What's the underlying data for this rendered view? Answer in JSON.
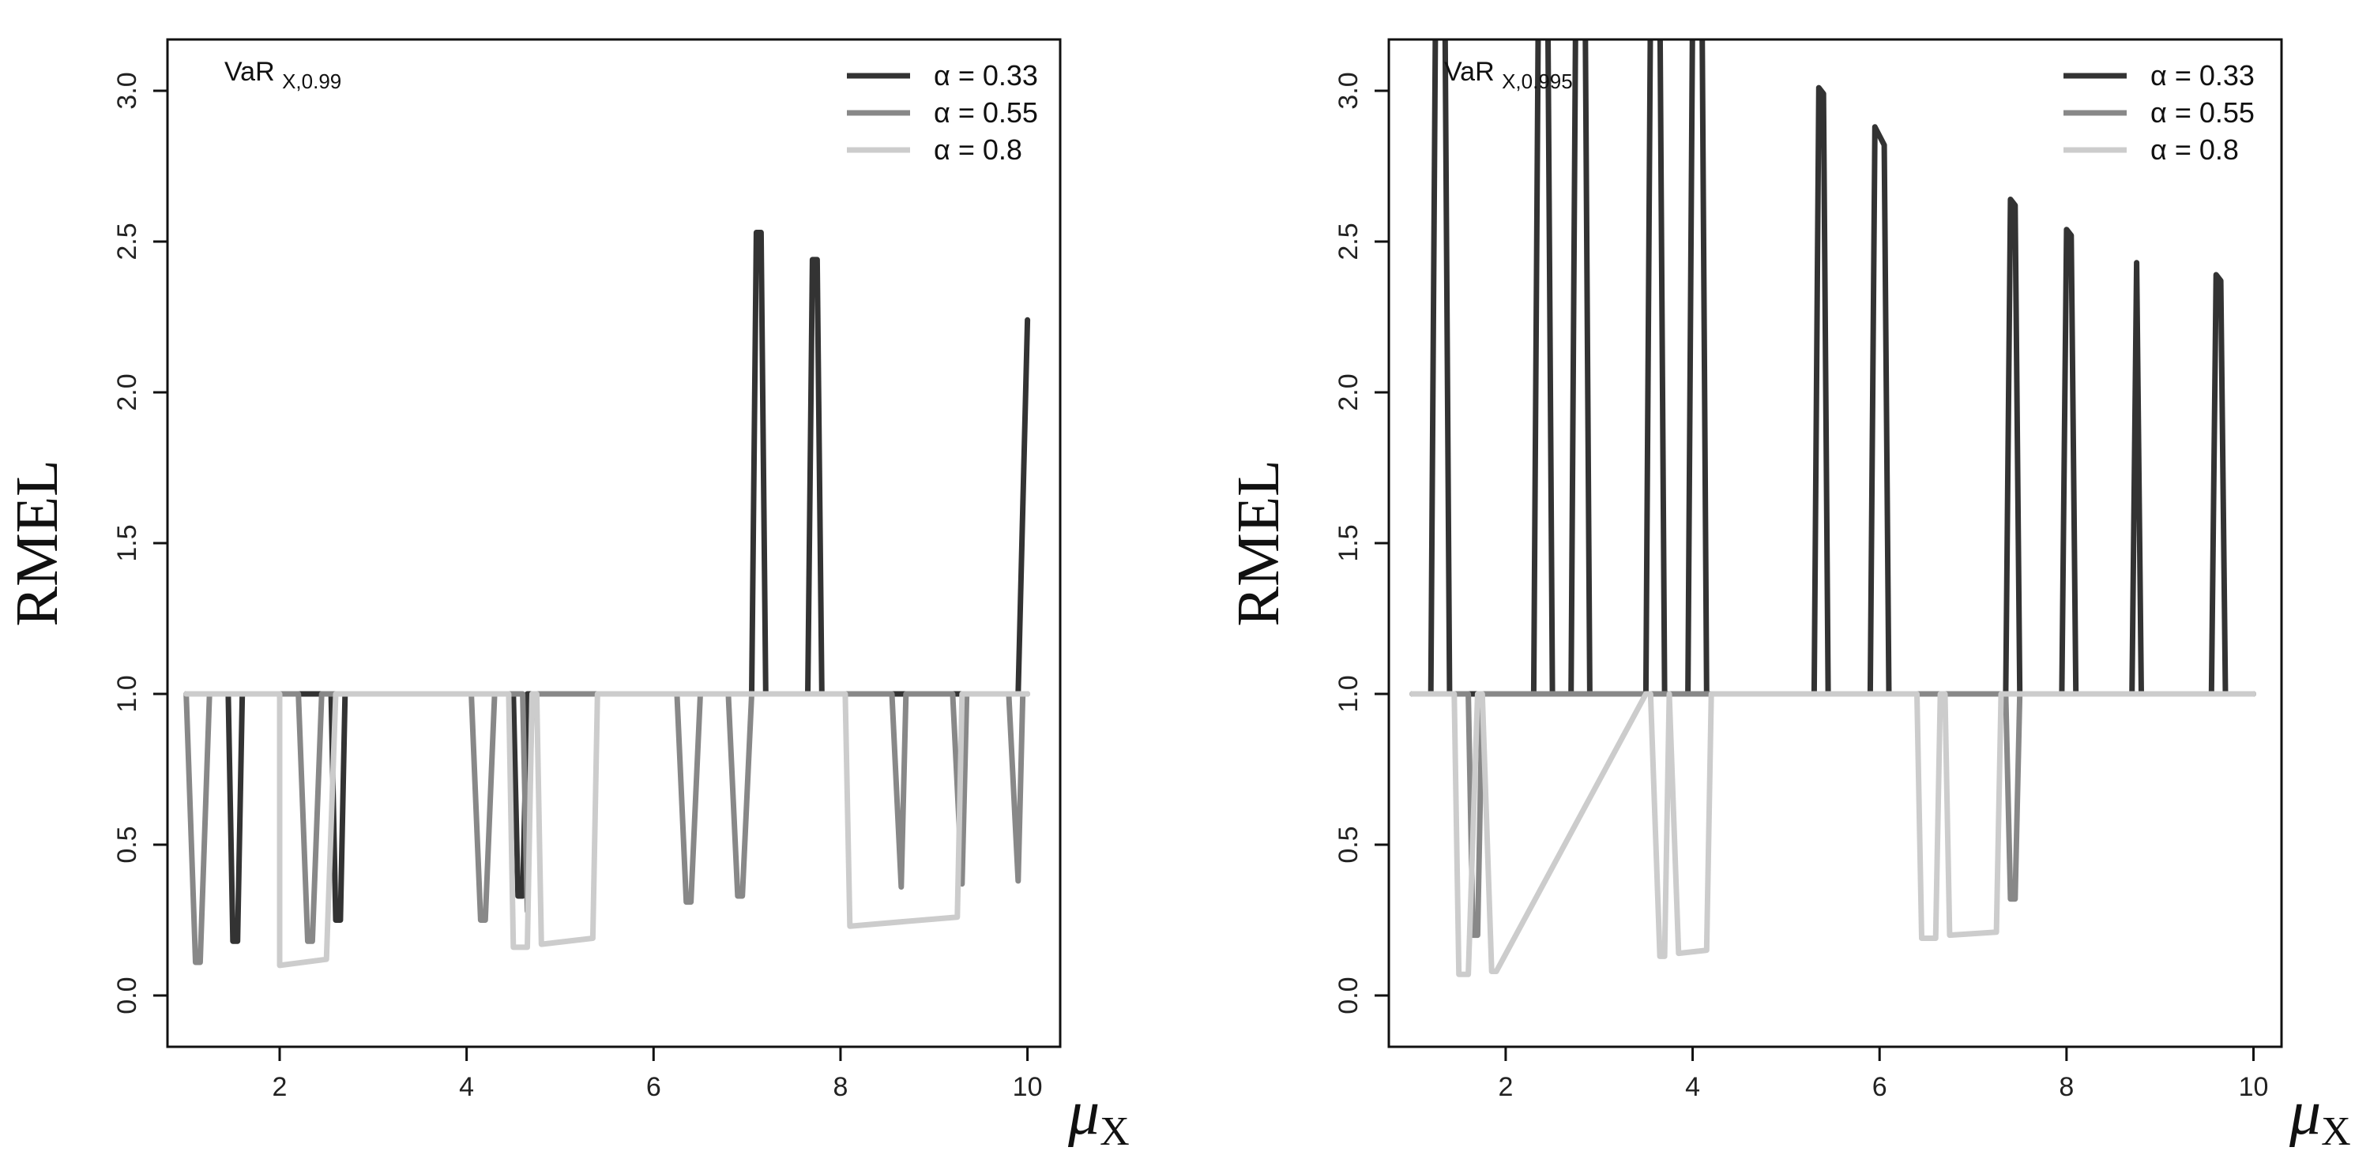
{
  "figure_note": "",
  "chart_data": [
    {
      "type": "line",
      "annotation": {
        "main": "VaR",
        "sub": "X,0.99"
      },
      "xlabel": {
        "main": "μ",
        "sub": "X"
      },
      "ylabel": "RMEL",
      "xlim": [
        0.8,
        10.35
      ],
      "ylim": [
        -0.17,
        3.17
      ],
      "xticks": [
        "2",
        "4",
        "6",
        "8",
        "10"
      ],
      "yticks": [
        "0.0",
        "0.5",
        "1.0",
        "1.5",
        "2.0",
        "2.5",
        "3.0"
      ],
      "grid": false,
      "legend_position": "top-right",
      "series": [
        {
          "name": "α = 0.33",
          "color": "#333333",
          "x": [
            1.0,
            1.45,
            1.5,
            1.55,
            1.6,
            2.55,
            2.6,
            2.65,
            2.7,
            4.5,
            4.55,
            4.6,
            4.65,
            7.05,
            7.1,
            7.15,
            7.2,
            7.65,
            7.7,
            7.75,
            7.8,
            9.9,
            10.0
          ],
          "y": [
            1.0,
            1.0,
            0.18,
            0.18,
            1.0,
            1.0,
            0.25,
            0.25,
            1.0,
            1.0,
            0.33,
            0.33,
            1.0,
            1.0,
            2.53,
            2.53,
            1.0,
            1.0,
            2.44,
            2.44,
            1.0,
            1.0,
            2.24
          ]
        },
        {
          "name": "α = 0.55",
          "color": "#888888",
          "x": [
            1.0,
            1.1,
            1.15,
            1.25,
            2.2,
            2.3,
            2.35,
            2.45,
            4.05,
            4.15,
            4.2,
            4.3,
            4.6,
            4.65,
            4.7,
            6.25,
            6.35,
            6.4,
            6.5,
            6.8,
            6.9,
            6.95,
            7.05,
            8.55,
            8.65,
            8.7,
            9.2,
            9.3,
            9.35,
            9.8,
            9.9,
            9.95,
            10.0
          ],
          "y": [
            1.0,
            0.11,
            0.11,
            1.0,
            1.0,
            0.18,
            0.18,
            1.0,
            1.0,
            0.25,
            0.25,
            1.0,
            1.0,
            0.28,
            1.0,
            1.0,
            0.31,
            0.31,
            1.0,
            1.0,
            0.33,
            0.33,
            1.0,
            1.0,
            0.36,
            1.0,
            1.0,
            0.37,
            1.0,
            1.0,
            0.38,
            1.0,
            1.0
          ]
        },
        {
          "name": "α = 0.8",
          "color": "#cccccc",
          "x": [
            1.0,
            2.0,
            2.0,
            2.5,
            2.6,
            4.45,
            4.5,
            4.65,
            4.7,
            4.75,
            4.8,
            5.35,
            5.4,
            8.05,
            8.1,
            9.25,
            9.3,
            10.0
          ],
          "y": [
            1.0,
            1.0,
            0.1,
            0.12,
            1.0,
            1.0,
            0.16,
            0.16,
            1.0,
            1.0,
            0.17,
            0.19,
            1.0,
            1.0,
            0.23,
            0.26,
            1.0,
            1.0
          ]
        }
      ]
    },
    {
      "type": "line",
      "annotation": {
        "main": "VaR",
        "sub": "X,0.995"
      },
      "xlabel": {
        "main": "μ",
        "sub": "X"
      },
      "ylabel": "RMEL",
      "xlim": [
        0.75,
        10.3
      ],
      "ylim": [
        -0.17,
        3.17
      ],
      "xticks": [
        "2",
        "4",
        "6",
        "8",
        "10"
      ],
      "yticks": [
        "0.0",
        "0.5",
        "1.0",
        "1.5",
        "2.0",
        "2.5",
        "3.0"
      ],
      "grid": false,
      "legend_position": "top-right",
      "series": [
        {
          "name": "α = 0.33",
          "color": "#333333",
          "x": [
            1.0,
            1.2,
            1.25,
            1.35,
            1.4,
            2.3,
            2.35,
            2.45,
            2.5,
            2.7,
            2.75,
            2.85,
            2.9,
            3.5,
            3.55,
            3.65,
            3.7,
            3.95,
            4.0,
            4.1,
            4.15,
            5.3,
            5.35,
            5.4,
            5.45,
            5.9,
            5.95,
            6.05,
            6.1,
            7.35,
            7.4,
            7.45,
            7.5,
            7.95,
            8.0,
            8.05,
            8.1,
            8.7,
            8.75,
            8.8,
            9.55,
            9.6,
            9.65,
            9.7,
            10.0
          ],
          "y": [
            1.0,
            1.0,
            3.3,
            3.3,
            1.0,
            1.0,
            3.3,
            3.3,
            1.0,
            1.0,
            3.3,
            3.3,
            1.0,
            1.0,
            3.3,
            3.3,
            1.0,
            1.0,
            3.3,
            3.3,
            1.0,
            1.0,
            3.01,
            2.99,
            1.0,
            1.0,
            2.88,
            2.82,
            1.0,
            1.0,
            2.64,
            2.62,
            1.0,
            1.0,
            2.54,
            2.52,
            1.0,
            1.0,
            2.43,
            1.0,
            1.0,
            2.39,
            2.37,
            1.0,
            1.0
          ]
        },
        {
          "name": "α = 0.55",
          "color": "#888888",
          "x": [
            1.0,
            1.6,
            1.65,
            1.7,
            1.75,
            6.5,
            7.35,
            7.4,
            7.45,
            7.5,
            10.0
          ],
          "y": [
            1.0,
            1.0,
            0.2,
            0.2,
            1.0,
            1.0,
            1.0,
            0.32,
            0.32,
            1.0,
            1.0
          ]
        },
        {
          "name": "α = 0.8",
          "color": "#cccccc",
          "x": [
            1.0,
            1.45,
            1.5,
            1.6,
            1.7,
            1.75,
            1.85,
            1.9,
            3.5,
            3.55,
            3.65,
            3.7,
            3.75,
            3.85,
            4.15,
            4.2,
            6.4,
            6.45,
            6.6,
            6.65,
            6.7,
            6.75,
            7.25,
            7.3,
            10.0
          ],
          "y": [
            1.0,
            1.0,
            0.07,
            0.07,
            1.0,
            1.0,
            0.08,
            0.08,
            1.0,
            1.0,
            0.13,
            0.13,
            1.0,
            0.14,
            0.15,
            1.0,
            1.0,
            0.19,
            0.19,
            1.0,
            1.0,
            0.2,
            0.21,
            1.0,
            1.0
          ]
        }
      ]
    }
  ]
}
